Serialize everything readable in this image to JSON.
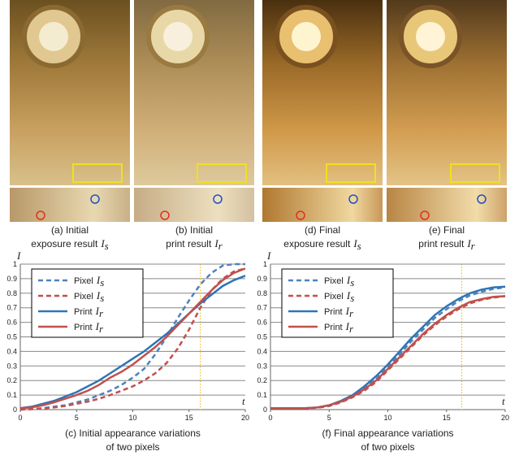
{
  "figures": [
    {
      "line1": "(a) Initial",
      "line2": "exposure result",
      "symbol": "I",
      "subscript": "s"
    },
    {
      "line1": "(b) Initial",
      "line2": "print result",
      "symbol": "I",
      "subscript": "r"
    },
    {
      "line1": "(d) Final",
      "line2": "exposure result",
      "symbol": "I",
      "subscript": "s"
    },
    {
      "line1": "(e) Final",
      "line2": "print result",
      "symbol": "I",
      "subscript": "r"
    }
  ],
  "chart_data": [
    {
      "type": "line",
      "caption": [
        "(c) Initial appearance variations",
        "of two pixels"
      ],
      "x_label": "t",
      "y_label": "I",
      "x": [
        0,
        1,
        2,
        3,
        4,
        5,
        6,
        7,
        8,
        9,
        10,
        11,
        12,
        13,
        14,
        15,
        16,
        17,
        18,
        19,
        20
      ],
      "xlim": [
        0,
        20
      ],
      "xticks": [
        0,
        5,
        10,
        15,
        20
      ],
      "ylim": [
        0,
        1
      ],
      "yticks": [
        0,
        0.1,
        0.2,
        0.3,
        0.4,
        0.5,
        0.6,
        0.7,
        0.8,
        0.9,
        1
      ],
      "grid": true,
      "reference_x": 16,
      "reference_color": "#f0b400",
      "series": [
        {
          "name": "Pixel",
          "symbol": "I",
          "subscript": "s",
          "color": "#4f81bd",
          "style": "dashed",
          "values": [
            0,
            0.005,
            0.01,
            0.02,
            0.03,
            0.05,
            0.07,
            0.1,
            0.13,
            0.17,
            0.22,
            0.28,
            0.38,
            0.5,
            0.63,
            0.75,
            0.86,
            0.94,
            0.99,
            1,
            1
          ]
        },
        {
          "name": "Pixel",
          "symbol": "I",
          "subscript": "s",
          "color": "#c0504d",
          "style": "dashed",
          "values": [
            0,
            0.003,
            0.008,
            0.015,
            0.025,
            0.04,
            0.055,
            0.075,
            0.1,
            0.13,
            0.16,
            0.2,
            0.25,
            0.32,
            0.42,
            0.55,
            0.7,
            0.82,
            0.9,
            0.95,
            0.97
          ]
        },
        {
          "name": "Print",
          "symbol": "I",
          "subscript": "r",
          "color": "#2e75b6",
          "style": "solid",
          "values": [
            0.01,
            0.02,
            0.04,
            0.06,
            0.09,
            0.12,
            0.16,
            0.2,
            0.25,
            0.3,
            0.35,
            0.4,
            0.46,
            0.52,
            0.59,
            0.66,
            0.73,
            0.79,
            0.85,
            0.89,
            0.92
          ]
        },
        {
          "name": "Print",
          "symbol": "I",
          "subscript": "r",
          "color": "#c0504d",
          "style": "solid",
          "values": [
            0.01,
            0.015,
            0.03,
            0.05,
            0.075,
            0.1,
            0.13,
            0.17,
            0.22,
            0.26,
            0.31,
            0.37,
            0.43,
            0.5,
            0.58,
            0.66,
            0.74,
            0.82,
            0.89,
            0.94,
            0.97
          ]
        }
      ]
    },
    {
      "type": "line",
      "caption": [
        "(f) Final appearance variations",
        "of two pixels"
      ],
      "x_label": "t",
      "y_label": "I",
      "x": [
        0,
        1,
        2,
        3,
        4,
        5,
        6,
        7,
        8,
        9,
        10,
        11,
        12,
        13,
        14,
        15,
        16,
        17,
        18,
        19,
        20
      ],
      "xlim": [
        0,
        20
      ],
      "xticks": [
        0,
        5,
        10,
        15,
        20
      ],
      "ylim": [
        0,
        1
      ],
      "yticks": [
        0,
        0.1,
        0.2,
        0.3,
        0.4,
        0.5,
        0.6,
        0.7,
        0.8,
        0.9,
        1
      ],
      "grid": true,
      "reference_x": 16.3,
      "reference_color": "#f0b400",
      "series": [
        {
          "name": "Pixel",
          "symbol": "I",
          "subscript": "s",
          "color": "#4f81bd",
          "style": "dashed",
          "values": [
            0.01,
            0.01,
            0.01,
            0.01,
            0.013,
            0.025,
            0.05,
            0.09,
            0.145,
            0.21,
            0.29,
            0.38,
            0.47,
            0.55,
            0.63,
            0.69,
            0.745,
            0.785,
            0.81,
            0.83,
            0.84
          ]
        },
        {
          "name": "Pixel",
          "symbol": "I",
          "subscript": "s",
          "color": "#c0504d",
          "style": "dashed",
          "values": [
            0.01,
            0.01,
            0.01,
            0.01,
            0.013,
            0.025,
            0.05,
            0.085,
            0.13,
            0.19,
            0.27,
            0.35,
            0.43,
            0.51,
            0.58,
            0.64,
            0.69,
            0.73,
            0.755,
            0.77,
            0.78
          ]
        },
        {
          "name": "Print",
          "symbol": "I",
          "subscript": "r",
          "color": "#2e75b6",
          "style": "solid",
          "values": [
            0.01,
            0.01,
            0.01,
            0.01,
            0.015,
            0.03,
            0.06,
            0.1,
            0.16,
            0.23,
            0.31,
            0.4,
            0.49,
            0.57,
            0.65,
            0.71,
            0.76,
            0.8,
            0.825,
            0.84,
            0.845
          ]
        },
        {
          "name": "Print",
          "symbol": "I",
          "subscript": "r",
          "color": "#c0504d",
          "style": "solid",
          "values": [
            0.01,
            0.01,
            0.01,
            0.01,
            0.015,
            0.03,
            0.055,
            0.09,
            0.14,
            0.2,
            0.28,
            0.36,
            0.44,
            0.52,
            0.59,
            0.65,
            0.7,
            0.74,
            0.76,
            0.775,
            0.78
          ]
        }
      ]
    }
  ]
}
